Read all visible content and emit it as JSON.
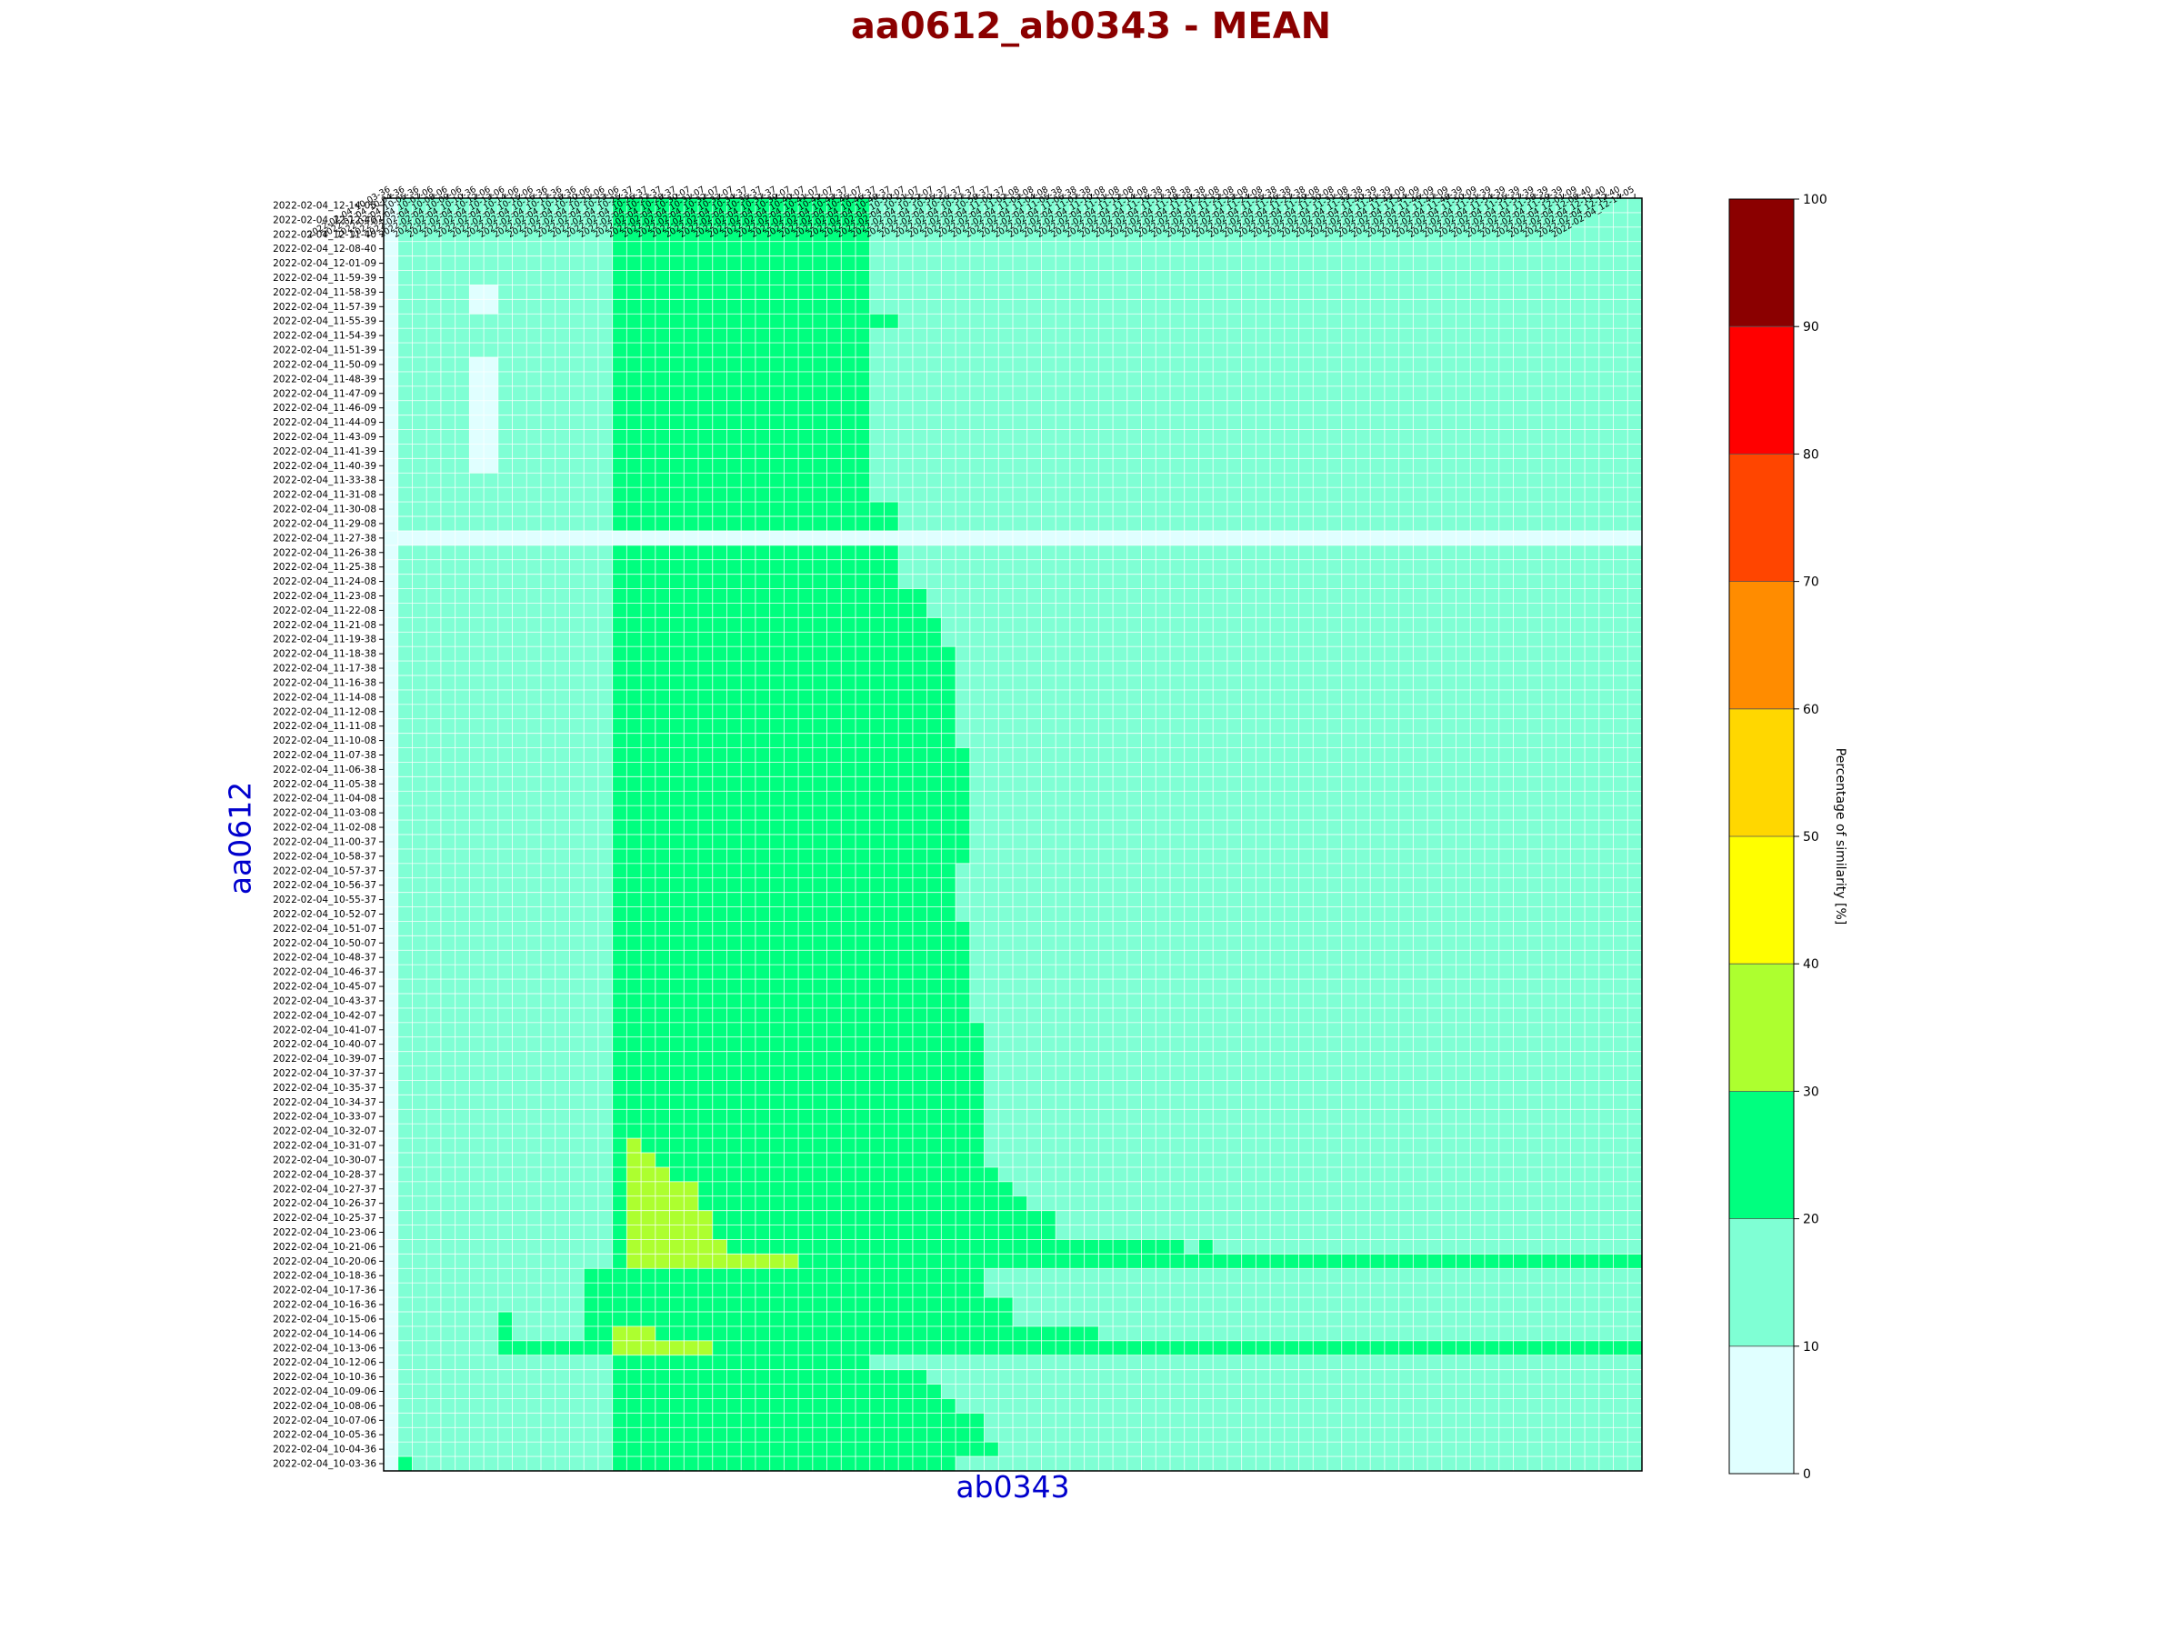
{
  "chart_data": {
    "type": "heatmap",
    "title": "aa0612_ab0343 - MEAN",
    "xlabel": "ab0343",
    "ylabel": "aa0612",
    "colorbar": {
      "label": "Percentage of similarity [%]",
      "range": [
        0,
        100
      ],
      "ticks": [
        "0",
        "10",
        "20",
        "30",
        "40",
        "50",
        "60",
        "70",
        "80",
        "90",
        "100"
      ],
      "colors": [
        "#e0ffff",
        "#7fffd4",
        "#00ff7f",
        "#adff2f",
        "#ffff00",
        "#ffd700",
        "#ff8c00",
        "#ff4500",
        "#ff0000",
        "#8b0000"
      ]
    },
    "y_labels": [
      "2022-02-04_12-14-05",
      "2022-02-04_12-12-40",
      "2022-02-04_12-11-40",
      "2022-02-04_12-08-40",
      "2022-02-04_12-01-09",
      "2022-02-04_11-59-39",
      "2022-02-04_11-58-39",
      "2022-02-04_11-57-39",
      "2022-02-04_11-55-39",
      "2022-02-04_11-54-39",
      "2022-02-04_11-51-39",
      "2022-02-04_11-50-09",
      "2022-02-04_11-48-39",
      "2022-02-04_11-47-09",
      "2022-02-04_11-46-09",
      "2022-02-04_11-44-09",
      "2022-02-04_11-43-09",
      "2022-02-04_11-41-39",
      "2022-02-04_11-40-39",
      "2022-02-04_11-33-38",
      "2022-02-04_11-31-08",
      "2022-02-04_11-30-08",
      "2022-02-04_11-29-08",
      "2022-02-04_11-27-38",
      "2022-02-04_11-26-38",
      "2022-02-04_11-25-38",
      "2022-02-04_11-24-08",
      "2022-02-04_11-23-08",
      "2022-02-04_11-22-08",
      "2022-02-04_11-21-08",
      "2022-02-04_11-19-38",
      "2022-02-04_11-18-38",
      "2022-02-04_11-17-38",
      "2022-02-04_11-16-38",
      "2022-02-04_11-14-08",
      "2022-02-04_11-12-08",
      "2022-02-04_11-11-08",
      "2022-02-04_11-10-08",
      "2022-02-04_11-07-38",
      "2022-02-04_11-06-38",
      "2022-02-04_11-05-38",
      "2022-02-04_11-04-08",
      "2022-02-04_11-03-08",
      "2022-02-04_11-02-08",
      "2022-02-04_11-00-37",
      "2022-02-04_10-58-37",
      "2022-02-04_10-57-37",
      "2022-02-04_10-56-37",
      "2022-02-04_10-55-37",
      "2022-02-04_10-52-07",
      "2022-02-04_10-51-07",
      "2022-02-04_10-50-07",
      "2022-02-04_10-48-37",
      "2022-02-04_10-46-37",
      "2022-02-04_10-45-07",
      "2022-02-04_10-43-37",
      "2022-02-04_10-42-07",
      "2022-02-04_10-41-07",
      "2022-02-04_10-40-07",
      "2022-02-04_10-39-07",
      "2022-02-04_10-37-37",
      "2022-02-04_10-35-37",
      "2022-02-04_10-34-37",
      "2022-02-04_10-33-07",
      "2022-02-04_10-32-07",
      "2022-02-04_10-31-07",
      "2022-02-04_10-30-07",
      "2022-02-04_10-28-37",
      "2022-02-04_10-27-37",
      "2022-02-04_10-26-37",
      "2022-02-04_10-25-37",
      "2022-02-04_10-23-06",
      "2022-02-04_10-21-06",
      "2022-02-04_10-20-06",
      "2022-02-04_10-18-36",
      "2022-02-04_10-17-36",
      "2022-02-04_10-16-36",
      "2022-02-04_10-15-06",
      "2022-02-04_10-14-06",
      "2022-02-04_10-13-06",
      "2022-02-04_10-12-06",
      "2022-02-04_10-10-36",
      "2022-02-04_10-09-06",
      "2022-02-04_10-08-06",
      "2022-02-04_10-07-06",
      "2022-02-04_10-05-36",
      "2022-02-04_10-04-36",
      "2022-02-04_10-03-36"
    ],
    "x_labels": [
      "2022-02-04_10-03-36",
      "2022-02-04_10-04-36",
      "2022-02-04_10-05-36",
      "2022-02-04_10-07-06",
      "2022-02-04_10-08-06",
      "2022-02-04_10-09-06",
      "2022-02-04_10-10-36",
      "2022-02-04_10-12-06",
      "2022-02-04_10-13-06",
      "2022-02-04_10-14-06",
      "2022-02-04_10-15-06",
      "2022-02-04_10-16-36",
      "2022-02-04_10-17-36",
      "2022-02-04_10-18-36",
      "2022-02-04_10-20-06",
      "2022-02-04_10-21-06",
      "2022-02-04_10-23-06",
      "2022-02-04_10-25-37",
      "2022-02-04_10-26-37",
      "2022-02-04_10-27-37",
      "2022-02-04_10-28-37",
      "2022-02-04_10-30-07",
      "2022-02-04_10-31-07",
      "2022-02-04_10-32-07",
      "2022-02-04_10-33-07",
      "2022-02-04_10-34-37",
      "2022-02-04_10-35-37",
      "2022-02-04_10-37-37",
      "2022-02-04_10-39-07",
      "2022-02-04_10-40-07",
      "2022-02-04_10-41-07",
      "2022-02-04_10-42-07",
      "2022-02-04_10-43-37",
      "2022-02-04_10-45-07",
      "2022-02-04_10-46-37",
      "2022-02-04_10-48-37",
      "2022-02-04_10-50-07",
      "2022-02-04_10-51-07",
      "2022-02-04_10-52-07",
      "2022-02-04_10-55-37",
      "2022-02-04_10-56-37",
      "2022-02-04_10-57-37",
      "2022-02-04_10-58-37",
      "2022-02-04_11-00-37",
      "2022-02-04_11-02-08",
      "2022-02-04_11-03-08",
      "2022-02-04_11-04-08",
      "2022-02-04_11-05-38",
      "2022-02-04_11-06-38",
      "2022-02-04_11-07-38",
      "2022-02-04_11-10-08",
      "2022-02-04_11-11-08",
      "2022-02-04_11-12-08",
      "2022-02-04_11-14-08",
      "2022-02-04_11-16-38",
      "2022-02-04_11-17-38",
      "2022-02-04_11-18-38",
      "2022-02-04_11-19-38",
      "2022-02-04_11-21-08",
      "2022-02-04_11-22-08",
      "2022-02-04_11-23-08",
      "2022-02-04_11-24-08",
      "2022-02-04_11-25-38",
      "2022-02-04_11-26-38",
      "2022-02-04_11-27-38",
      "2022-02-04_11-29-08",
      "2022-02-04_11-30-08",
      "2022-02-04_11-31-08",
      "2022-02-04_11-33-38",
      "2022-02-04_11-40-39",
      "2022-02-04_11-41-39",
      "2022-02-04_11-43-09",
      "2022-02-04_11-44-09",
      "2022-02-04_11-46-09",
      "2022-02-04_11-47-09",
      "2022-02-04_11-48-39",
      "2022-02-04_11-50-09",
      "2022-02-04_11-51-39",
      "2022-02-04_11-54-39",
      "2022-02-04_11-55-39",
      "2022-02-04_11-57-39",
      "2022-02-04_11-58-39",
      "2022-02-04_11-59-39",
      "2022-02-04_12-01-09",
      "2022-02-04_12-08-40",
      "2022-02-04_12-11-40",
      "2022-02-04_12-12-40",
      "2022-02-04_12-14-05"
    ],
    "band_values": {
      "light_cyan": 5,
      "aquamarine": 15,
      "spring_green": 25,
      "green_yellow": 35
    },
    "base_band": "aquamarine",
    "rects": [
      {
        "r0": 0,
        "r1": 87,
        "c0": 16,
        "c1": 33,
        "band": "spring_green"
      },
      {
        "r0": 0,
        "r1": 87,
        "c0": 0,
        "c1": 0,
        "band": "light_cyan"
      },
      {
        "r0": 6,
        "r1": 7,
        "c0": 6,
        "c1": 7,
        "band": "light_cyan"
      },
      {
        "r0": 11,
        "r1": 18,
        "c0": 6,
        "c1": 7,
        "band": "light_cyan"
      },
      {
        "r0": 8,
        "r1": 8,
        "c0": 34,
        "c1": 35,
        "band": "spring_green"
      },
      {
        "r0": 21,
        "r1": 22,
        "c0": 34,
        "c1": 35,
        "band": "spring_green"
      },
      {
        "r0": 24,
        "r1": 26,
        "c0": 34,
        "c1": 35,
        "band": "spring_green"
      },
      {
        "r0": 27,
        "r1": 28,
        "c0": 34,
        "c1": 37,
        "band": "spring_green"
      },
      {
        "r0": 29,
        "r1": 30,
        "c0": 34,
        "c1": 38,
        "band": "spring_green"
      },
      {
        "r0": 31,
        "r1": 37,
        "c0": 34,
        "c1": 39,
        "band": "spring_green"
      },
      {
        "r0": 38,
        "r1": 45,
        "c0": 34,
        "c1": 40,
        "band": "spring_green"
      },
      {
        "r0": 46,
        "r1": 49,
        "c0": 34,
        "c1": 39,
        "band": "spring_green"
      },
      {
        "r0": 50,
        "r1": 56,
        "c0": 34,
        "c1": 40,
        "band": "spring_green"
      },
      {
        "r0": 57,
        "r1": 66,
        "c0": 34,
        "c1": 41,
        "band": "spring_green"
      },
      {
        "r0": 67,
        "r1": 67,
        "c0": 34,
        "c1": 42,
        "band": "spring_green"
      },
      {
        "r0": 68,
        "r1": 68,
        "c0": 34,
        "c1": 43,
        "band": "spring_green"
      },
      {
        "r0": 69,
        "r1": 69,
        "c0": 34,
        "c1": 44,
        "band": "spring_green"
      },
      {
        "r0": 70,
        "r1": 71,
        "c0": 34,
        "c1": 46,
        "band": "spring_green"
      },
      {
        "r0": 72,
        "r1": 72,
        "c0": 34,
        "c1": 55,
        "band": "spring_green"
      },
      {
        "r0": 72,
        "r1": 72,
        "c0": 57,
        "c1": 57,
        "band": "spring_green"
      },
      {
        "r0": 73,
        "r1": 73,
        "c0": 34,
        "c1": 87,
        "band": "spring_green"
      },
      {
        "r0": 74,
        "r1": 78,
        "c0": 14,
        "c1": 15,
        "band": "spring_green"
      },
      {
        "r0": 74,
        "r1": 75,
        "c0": 34,
        "c1": 41,
        "band": "spring_green"
      },
      {
        "r0": 76,
        "r1": 77,
        "c0": 34,
        "c1": 43,
        "band": "spring_green"
      },
      {
        "r0": 78,
        "r1": 78,
        "c0": 34,
        "c1": 49,
        "band": "spring_green"
      },
      {
        "r0": 77,
        "r1": 79,
        "c0": 8,
        "c1": 8,
        "band": "spring_green"
      },
      {
        "r0": 79,
        "r1": 79,
        "c0": 9,
        "c1": 87,
        "band": "spring_green"
      },
      {
        "r0": 81,
        "r1": 81,
        "c0": 34,
        "c1": 37,
        "band": "spring_green"
      },
      {
        "r0": 82,
        "r1": 82,
        "c0": 34,
        "c1": 38,
        "band": "spring_green"
      },
      {
        "r0": 83,
        "r1": 83,
        "c0": 34,
        "c1": 39,
        "band": "spring_green"
      },
      {
        "r0": 84,
        "r1": 85,
        "c0": 34,
        "c1": 41,
        "band": "spring_green"
      },
      {
        "r0": 86,
        "r1": 86,
        "c0": 34,
        "c1": 42,
        "band": "spring_green"
      },
      {
        "r0": 87,
        "r1": 87,
        "c0": 34,
        "c1": 39,
        "band": "spring_green"
      },
      {
        "r0": 87,
        "r1": 87,
        "c0": 1,
        "c1": 1,
        "band": "spring_green"
      },
      {
        "r0": 65,
        "r1": 65,
        "c0": 17,
        "c1": 17,
        "band": "green_yellow"
      },
      {
        "r0": 66,
        "r1": 66,
        "c0": 17,
        "c1": 18,
        "band": "green_yellow"
      },
      {
        "r0": 67,
        "r1": 67,
        "c0": 17,
        "c1": 19,
        "band": "green_yellow"
      },
      {
        "r0": 68,
        "r1": 69,
        "c0": 17,
        "c1": 21,
        "band": "green_yellow"
      },
      {
        "r0": 70,
        "r1": 71,
        "c0": 17,
        "c1": 22,
        "band": "green_yellow"
      },
      {
        "r0": 72,
        "r1": 72,
        "c0": 17,
        "c1": 23,
        "band": "green_yellow"
      },
      {
        "r0": 73,
        "r1": 73,
        "c0": 17,
        "c1": 28,
        "band": "green_yellow"
      },
      {
        "r0": 78,
        "r1": 78,
        "c0": 16,
        "c1": 18,
        "band": "green_yellow"
      },
      {
        "r0": 79,
        "r1": 79,
        "c0": 16,
        "c1": 22,
        "band": "green_yellow"
      },
      {
        "r0": 23,
        "r1": 23,
        "c0": 1,
        "c1": 87,
        "band": "light_cyan"
      }
    ]
  }
}
